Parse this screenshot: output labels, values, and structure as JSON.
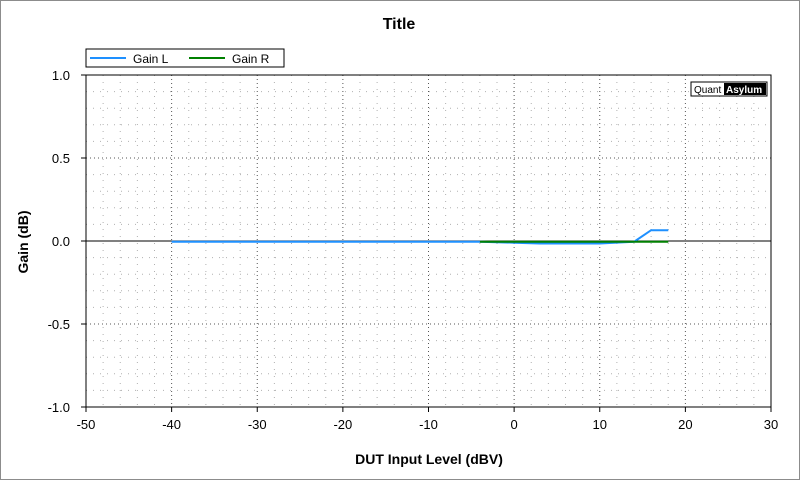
{
  "chart_data": {
    "type": "line",
    "title": "Title",
    "xlabel": "DUT Input Level (dBV)",
    "ylabel": "Gain (dB)",
    "xlim": [
      -50,
      30
    ],
    "ylim": [
      -1.0,
      1.0
    ],
    "xticks": [
      -50,
      -40,
      -30,
      -20,
      -10,
      0,
      10,
      20,
      30
    ],
    "xtick_labels": [
      "-50",
      "-40",
      "-30",
      "-20",
      "-10",
      "0",
      "10",
      "20",
      "30"
    ],
    "yticks": [
      1.0,
      0.5,
      0.0,
      -0.5,
      -1.0
    ],
    "ytick_labels": [
      "1.0",
      "0.5",
      "0.0",
      "-0.5",
      "-1.0"
    ],
    "grid": true,
    "legend_position": "top-left",
    "series": [
      {
        "name": "Gain L",
        "color": "#1e90ff",
        "x": [
          -40,
          -36,
          -32,
          -28,
          -24,
          -20,
          -16,
          -12,
          -8,
          -4,
          0,
          3,
          7,
          10,
          14,
          16,
          18
        ],
        "y": [
          -0.005,
          -0.005,
          -0.005,
          -0.005,
          -0.005,
          -0.005,
          -0.005,
          -0.005,
          -0.005,
          -0.005,
          -0.01,
          -0.015,
          -0.015,
          -0.015,
          -0.005,
          0.065,
          0.065
        ]
      },
      {
        "name": "Gain R",
        "color": "#008000",
        "x": [
          -4,
          0,
          4,
          8,
          12,
          16,
          18
        ],
        "y": [
          -0.005,
          -0.005,
          -0.005,
          -0.005,
          -0.005,
          -0.005,
          -0.005
        ]
      }
    ],
    "watermark": {
      "part1": "Quant",
      "part2": "Asylum"
    }
  }
}
